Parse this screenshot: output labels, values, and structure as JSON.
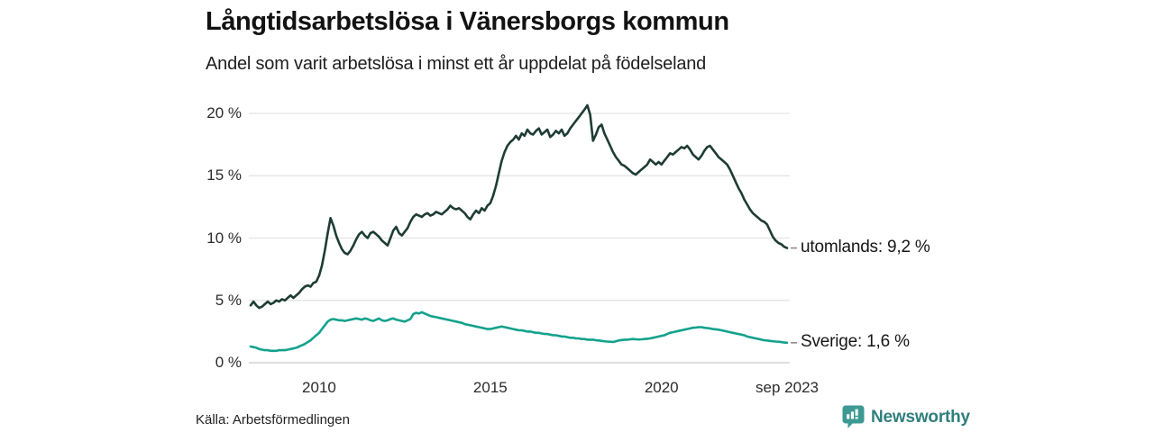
{
  "header": {
    "title": "Långtidsarbetslösa i Vänersborgs kommun",
    "subtitle": "Andel som varit arbetslösa i minst ett år uppdelat på födelseland"
  },
  "footer": {
    "source": "Källa: Arbetsförmedlingen",
    "brand": "Newsworthy"
  },
  "colors": {
    "utomlands_line": "#1e3c34",
    "sverige_line": "#13a28c",
    "grid": "#e3e3e3",
    "zero_line": "#c9c9c9",
    "connector": "#8c8c8c",
    "brand_icon": "#3c9a93",
    "brand_text": "#2f7f7d"
  },
  "chart_data": {
    "type": "line",
    "title": "Långtidsarbetslösa i Vänersborgs kommun",
    "subtitle": "Andel som varit arbetslösa i minst ett år uppdelat på födelseland",
    "x_start": "2008-01",
    "x_end": "2023-09",
    "x_interval": "monthly",
    "ylim": [
      0,
      21.5
    ],
    "grid": "horizontal-only",
    "y_ticks": [
      0,
      5,
      10,
      15,
      20
    ],
    "y_tick_labels": [
      "0 %",
      "5 %",
      "10 %",
      "15 %",
      "20 %"
    ],
    "x_ticks": [
      {
        "label": "2010",
        "month": 24
      },
      {
        "label": "2015",
        "month": 84
      },
      {
        "label": "2020",
        "month": 144
      },
      {
        "label": "sep 2023",
        "month": 188
      }
    ],
    "series": [
      {
        "name": "utomlands",
        "end_label": "utomlands: 9,2 %",
        "end_value_display": "9,2 %",
        "values": [
          4.6,
          4.9,
          4.6,
          4.4,
          4.5,
          4.7,
          4.9,
          4.7,
          4.8,
          5.0,
          4.9,
          5.1,
          5.0,
          5.2,
          5.4,
          5.2,
          5.4,
          5.6,
          5.9,
          6.1,
          6.2,
          6.1,
          6.4,
          6.5,
          7.0,
          7.8,
          9.0,
          10.4,
          11.6,
          11.0,
          10.2,
          9.6,
          9.1,
          8.8,
          8.7,
          9.0,
          9.4,
          9.9,
          10.3,
          10.5,
          10.2,
          10.0,
          10.4,
          10.5,
          10.3,
          10.1,
          9.8,
          9.6,
          9.4,
          10.0,
          10.6,
          10.9,
          10.4,
          10.2,
          10.5,
          10.8,
          11.3,
          11.7,
          11.9,
          11.8,
          11.7,
          11.9,
          12.0,
          11.8,
          11.9,
          12.1,
          12.0,
          11.9,
          12.1,
          12.3,
          12.6,
          12.4,
          12.3,
          12.4,
          12.2,
          12.0,
          11.7,
          11.5,
          11.9,
          12.2,
          12.0,
          12.4,
          12.2,
          12.6,
          12.8,
          13.4,
          14.2,
          15.2,
          16.2,
          16.9,
          17.4,
          17.7,
          17.9,
          18.2,
          17.9,
          18.4,
          18.2,
          18.7,
          18.4,
          18.3,
          18.6,
          18.8,
          18.3,
          18.5,
          18.7,
          18.1,
          18.3,
          18.6,
          18.4,
          18.7,
          18.2,
          18.4,
          18.8,
          19.1,
          19.4,
          19.7,
          20.0,
          20.3,
          20.65,
          19.9,
          17.8,
          18.3,
          18.9,
          19.1,
          18.4,
          17.9,
          17.4,
          16.9,
          16.5,
          16.2,
          15.9,
          15.8,
          15.6,
          15.4,
          15.2,
          15.1,
          15.3,
          15.5,
          15.7,
          15.9,
          16.3,
          16.1,
          15.9,
          16.1,
          15.9,
          16.2,
          16.5,
          16.8,
          16.7,
          16.9,
          17.1,
          17.3,
          17.2,
          17.4,
          17.1,
          16.7,
          16.5,
          16.3,
          16.6,
          17.0,
          17.3,
          17.4,
          17.1,
          16.8,
          16.5,
          16.3,
          16.1,
          15.9,
          15.5,
          15.0,
          14.5,
          14.0,
          13.6,
          13.1,
          12.7,
          12.3,
          12.0,
          11.8,
          11.6,
          11.4,
          11.3,
          11.1,
          10.6,
          10.1,
          9.8,
          9.6,
          9.5,
          9.3,
          9.2
        ]
      },
      {
        "name": "Sverige",
        "end_label": "Sverige: 1,6 %",
        "end_value_display": "1,6 %",
        "values": [
          1.3,
          1.25,
          1.2,
          1.1,
          1.05,
          1.0,
          1.0,
          0.95,
          0.95,
          0.95,
          1.0,
          1.0,
          1.0,
          1.05,
          1.1,
          1.15,
          1.2,
          1.3,
          1.4,
          1.5,
          1.65,
          1.8,
          2.0,
          2.2,
          2.4,
          2.7,
          3.0,
          3.3,
          3.45,
          3.5,
          3.45,
          3.4,
          3.4,
          3.35,
          3.4,
          3.45,
          3.5,
          3.55,
          3.5,
          3.45,
          3.55,
          3.5,
          3.4,
          3.35,
          3.45,
          3.55,
          3.4,
          3.35,
          3.4,
          3.5,
          3.55,
          3.45,
          3.4,
          3.35,
          3.3,
          3.4,
          3.5,
          3.9,
          4.0,
          3.95,
          4.05,
          3.95,
          3.85,
          3.75,
          3.7,
          3.65,
          3.6,
          3.55,
          3.5,
          3.45,
          3.4,
          3.35,
          3.3,
          3.25,
          3.2,
          3.1,
          3.05,
          3.0,
          2.95,
          2.9,
          2.85,
          2.8,
          2.75,
          2.7,
          2.7,
          2.75,
          2.8,
          2.85,
          2.9,
          2.85,
          2.8,
          2.75,
          2.7,
          2.65,
          2.6,
          2.6,
          2.55,
          2.5,
          2.5,
          2.45,
          2.4,
          2.4,
          2.35,
          2.3,
          2.3,
          2.25,
          2.2,
          2.2,
          2.15,
          2.1,
          2.1,
          2.05,
          2.0,
          2.0,
          1.95,
          1.95,
          1.9,
          1.9,
          1.85,
          1.85,
          1.85,
          1.8,
          1.78,
          1.75,
          1.72,
          1.7,
          1.68,
          1.66,
          1.72,
          1.78,
          1.82,
          1.85,
          1.85,
          1.88,
          1.9,
          1.88,
          1.86,
          1.88,
          1.9,
          1.92,
          1.95,
          2.0,
          2.05,
          2.1,
          2.15,
          2.2,
          2.3,
          2.4,
          2.45,
          2.5,
          2.55,
          2.6,
          2.65,
          2.7,
          2.75,
          2.8,
          2.82,
          2.85,
          2.85,
          2.8,
          2.78,
          2.75,
          2.7,
          2.68,
          2.65,
          2.6,
          2.55,
          2.5,
          2.45,
          2.4,
          2.35,
          2.3,
          2.25,
          2.2,
          2.1,
          2.05,
          2.0,
          1.95,
          1.9,
          1.85,
          1.8,
          1.78,
          1.75,
          1.72,
          1.7,
          1.68,
          1.65,
          1.62,
          1.6
        ]
      }
    ]
  }
}
